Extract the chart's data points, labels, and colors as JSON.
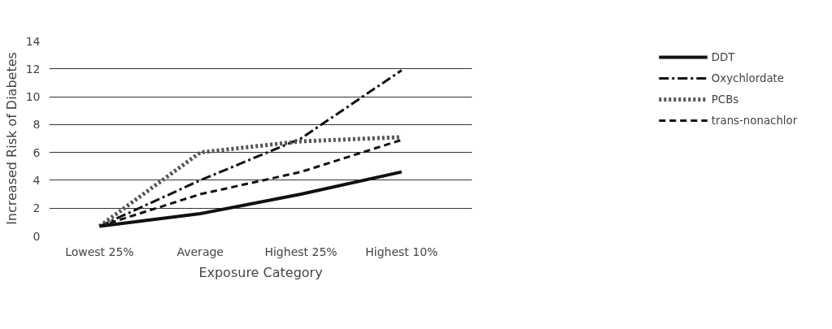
{
  "chart_data": {
    "type": "line",
    "xlabel": "Exposure Category",
    "ylabel": "Increased Risk of Diabetes",
    "categories": [
      "Lowest 25%",
      "Average",
      "Highest 25%",
      "Highest 10%"
    ],
    "series": [
      {
        "name": "DDT",
        "color": "#111111",
        "line_style": "solid",
        "values": [
          0.7,
          1.6,
          3.0,
          4.6
        ]
      },
      {
        "name": "Oxychlordate",
        "color": "#111111",
        "line_style": "dashdot",
        "values": [
          0.7,
          4.0,
          7.0,
          11.9
        ]
      },
      {
        "name": "PCBs",
        "color": "#555555",
        "line_style": "dotted",
        "values": [
          0.7,
          6.0,
          6.8,
          7.1
        ]
      },
      {
        "name": "trans-nonachlor",
        "color": "#111111",
        "line_style": "dashed",
        "values": [
          0.7,
          3.0,
          4.6,
          6.9
        ]
      }
    ],
    "ylim": [
      0,
      14
    ],
    "yticks": [
      0,
      2,
      4,
      6,
      8,
      10,
      12,
      14
    ],
    "grid": "y",
    "legend": "right"
  }
}
